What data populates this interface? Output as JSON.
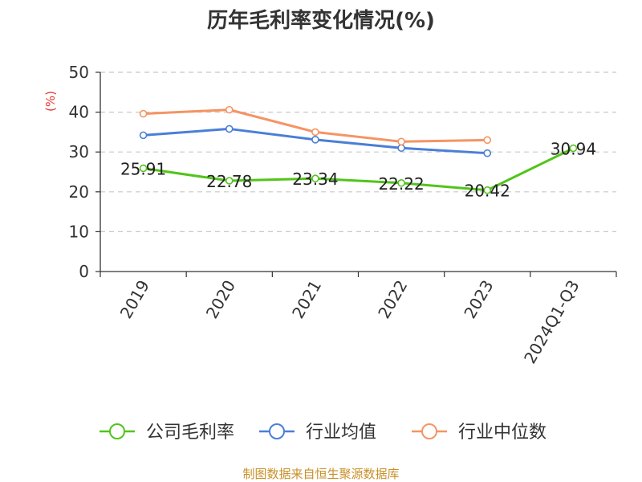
{
  "chart_data": {
    "type": "line",
    "title": "历年毛利率变化情况(%)",
    "ylabel": "(%)",
    "xlabel": "",
    "categories": [
      "2019",
      "2020",
      "2021",
      "2022",
      "2023",
      "2024Q1-Q3"
    ],
    "ylim": [
      0,
      50
    ],
    "yticks": [
      0,
      10,
      20,
      30,
      40,
      50
    ],
    "grid": true,
    "legend_position": "bottom",
    "series": [
      {
        "name": "公司毛利率",
        "color": "#52c41a",
        "values": [
          25.91,
          22.78,
          23.34,
          22.22,
          20.42,
          30.94
        ],
        "labels": [
          "25.91",
          "22.78",
          "23.34",
          "22.22",
          "20.42",
          "30.94"
        ],
        "show_labels": true
      },
      {
        "name": "行业均值",
        "color": "#4a7fd6",
        "values": [
          34.2,
          35.8,
          33.1,
          31.0,
          29.7,
          null
        ],
        "show_labels": false
      },
      {
        "name": "行业中位数",
        "color": "#f59464",
        "values": [
          39.6,
          40.6,
          35.0,
          32.6,
          33.0,
          null
        ],
        "show_labels": false
      }
    ]
  },
  "source_text": "制图数据来自恒生聚源数据库"
}
